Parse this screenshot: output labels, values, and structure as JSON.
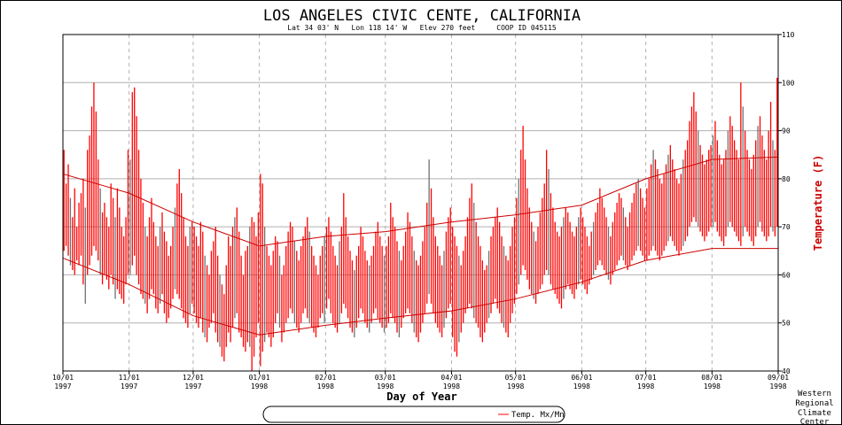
{
  "chart_data": {
    "type": "bar",
    "title": "LOS ANGELES CIVIC CENTE, CALIFORNIA",
    "subtitle": "Lat 34 03' N   Lon 118 14' W   Elev 270 feet     COOP ID 045115",
    "xlabel": "Day of Year",
    "ylabel": "Temperature (F)",
    "ylim": [
      40,
      110
    ],
    "y_ticks": [
      40,
      50,
      60,
      70,
      80,
      90,
      100,
      110
    ],
    "x_start": "1997-10-01",
    "x_ticks": [
      {
        "label": "10/01",
        "year": "1997",
        "day": 0
      },
      {
        "label": "11/01",
        "year": "1997",
        "day": 31
      },
      {
        "label": "12/01",
        "year": "1997",
        "day": 61
      },
      {
        "label": "01/01",
        "year": "1998",
        "day": 92
      },
      {
        "label": "02/01",
        "year": "1998",
        "day": 123
      },
      {
        "label": "03/01",
        "year": "1998",
        "day": 151
      },
      {
        "label": "04/01",
        "year": "1998",
        "day": 182
      },
      {
        "label": "05/01",
        "year": "1998",
        "day": 212
      },
      {
        "label": "06/01",
        "year": "1998",
        "day": 243
      },
      {
        "label": "07/01",
        "year": "1998",
        "day": 273
      },
      {
        "label": "08/01",
        "year": "1998",
        "day": 304
      },
      {
        "label": "09/01",
        "year": "1998",
        "day": 335
      }
    ],
    "grid": true,
    "legend": {
      "label": "Temp. Mx/Mn",
      "placement": "bottom"
    },
    "credit": [
      "Western",
      "Regional",
      "Climate",
      "Center"
    ],
    "colors": {
      "bars": "#ff0000",
      "normals": "#cc0000",
      "ylabel": "#cc0000",
      "grid": "#b0b0b0"
    },
    "daily_max": [
      86,
      79,
      83,
      76,
      72,
      78,
      70,
      75,
      77,
      80,
      74,
      86,
      89,
      95,
      100,
      94,
      84,
      78,
      73,
      75,
      72,
      70,
      79,
      76,
      72,
      78,
      74,
      70,
      68,
      72,
      86,
      84,
      98,
      99,
      93,
      86,
      80,
      75,
      70,
      68,
      72,
      76,
      71,
      68,
      66,
      70,
      73,
      69,
      67,
      64,
      66,
      70,
      74,
      79,
      82,
      77,
      72,
      68,
      66,
      70,
      71,
      70,
      68,
      66,
      71,
      69,
      64,
      62,
      60,
      65,
      67,
      70,
      64,
      60,
      58,
      56,
      62,
      68,
      66,
      70,
      72,
      74,
      69,
      64,
      60,
      65,
      66,
      70,
      72,
      71,
      68,
      73,
      81,
      79,
      70,
      66,
      64,
      62,
      65,
      68,
      67,
      64,
      60,
      62,
      66,
      69,
      71,
      70,
      67,
      65,
      63,
      66,
      68,
      70,
      72,
      69,
      66,
      64,
      62,
      60,
      64,
      66,
      68,
      70,
      72,
      69,
      66,
      64,
      62,
      67,
      70,
      77,
      72,
      68,
      65,
      63,
      61,
      64,
      66,
      70,
      68,
      65,
      63,
      62,
      64,
      66,
      69,
      71,
      68,
      66,
      64,
      66,
      68,
      75,
      72,
      70,
      67,
      65,
      63,
      66,
      69,
      73,
      71,
      68,
      65,
      63,
      62,
      64,
      67,
      70,
      75,
      84,
      78,
      72,
      68,
      66,
      64,
      62,
      65,
      69,
      72,
      74,
      70,
      68,
      66,
      64,
      62,
      65,
      68,
      72,
      76,
      79,
      75,
      71,
      68,
      66,
      63,
      61,
      62,
      65,
      68,
      70,
      72,
      74,
      71,
      68,
      66,
      64,
      63,
      66,
      70,
      72,
      76,
      80,
      86,
      91,
      84,
      78,
      74,
      71,
      69,
      67,
      70,
      73,
      76,
      79,
      86,
      82,
      77,
      74,
      71,
      69,
      68,
      70,
      72,
      74,
      73,
      71,
      69,
      68,
      70,
      72,
      74,
      72,
      70,
      68,
      66,
      69,
      71,
      73,
      75,
      78,
      76,
      74,
      72,
      70,
      68,
      71,
      73,
      75,
      77,
      76,
      74,
      72,
      70,
      73,
      75,
      77,
      79,
      80,
      78,
      76,
      74,
      78,
      80,
      83,
      86,
      84,
      82,
      80,
      79,
      81,
      83,
      85,
      87,
      84,
      82,
      80,
      79,
      81,
      84,
      86,
      88,
      92,
      95,
      98,
      94,
      90,
      87,
      85,
      83,
      84,
      86,
      87,
      89,
      92,
      88,
      85,
      83,
      84,
      86,
      90,
      93,
      91,
      88,
      86,
      84,
      100,
      95,
      90,
      86,
      84,
      82,
      85,
      88,
      91,
      93,
      89,
      86,
      84,
      90,
      96,
      88,
      86,
      101
    ],
    "daily_min": [
      65,
      66,
      64,
      62,
      61,
      60,
      63,
      62,
      64,
      58,
      54,
      60,
      62,
      64,
      66,
      65,
      63,
      60,
      58,
      60,
      59,
      57,
      60,
      58,
      55,
      57,
      56,
      55,
      54,
      58,
      60,
      60,
      62,
      64,
      60,
      58,
      56,
      55,
      54,
      52,
      55,
      57,
      56,
      53,
      52,
      54,
      56,
      52,
      50,
      51,
      53,
      55,
      57,
      56,
      55,
      53,
      51,
      50,
      49,
      52,
      54,
      52,
      50,
      49,
      51,
      48,
      47,
      46,
      49,
      50,
      52,
      48,
      46,
      45,
      43,
      42,
      45,
      48,
      46,
      49,
      51,
      52,
      48,
      47,
      45,
      44,
      46,
      45,
      40,
      43,
      47,
      50,
      41,
      44,
      46,
      48,
      47,
      45,
      47,
      50,
      52,
      49,
      46,
      48,
      50,
      51,
      53,
      52,
      50,
      49,
      48,
      50,
      52,
      53,
      51,
      50,
      49,
      48,
      47,
      49,
      51,
      52,
      50,
      53,
      55,
      52,
      50,
      49,
      48,
      50,
      52,
      54,
      53,
      51,
      49,
      48,
      47,
      49,
      51,
      53,
      52,
      50,
      49,
      48,
      50,
      52,
      53,
      51,
      50,
      49,
      48,
      49,
      50,
      52,
      51,
      50,
      48,
      47,
      49,
      51,
      52,
      53,
      52,
      50,
      48,
      47,
      46,
      48,
      50,
      52,
      54,
      56,
      54,
      52,
      50,
      49,
      48,
      47,
      49,
      51,
      53,
      54,
      47,
      44,
      43,
      46,
      48,
      50,
      52,
      53,
      54,
      53,
      51,
      50,
      49,
      47,
      46,
      48,
      50,
      51,
      52,
      54,
      55,
      53,
      52,
      50,
      49,
      48,
      47,
      50,
      52,
      54,
      56,
      58,
      60,
      62,
      61,
      59,
      57,
      56,
      55,
      54,
      56,
      57,
      58,
      60,
      61,
      60,
      58,
      57,
      56,
      55,
      54,
      53,
      55,
      57,
      58,
      57,
      56,
      55,
      57,
      58,
      59,
      58,
      57,
      56,
      58,
      59,
      60,
      61,
      62,
      63,
      62,
      61,
      60,
      59,
      58,
      60,
      61,
      62,
      63,
      64,
      63,
      62,
      61,
      62,
      63,
      64,
      65,
      66,
      65,
      64,
      63,
      63,
      64,
      65,
      66,
      65,
      64,
      63,
      64,
      65,
      66,
      67,
      68,
      67,
      66,
      65,
      64,
      65,
      66,
      67,
      68,
      70,
      71,
      72,
      71,
      70,
      69,
      68,
      67,
      68,
      69,
      70,
      70,
      71,
      69,
      68,
      67,
      66,
      68,
      70,
      71,
      70,
      69,
      68,
      67,
      66,
      68,
      70,
      69,
      68,
      67,
      66,
      68,
      70,
      71,
      69,
      68,
      67,
      68,
      70,
      69,
      68,
      70
    ],
    "normal_max": [
      81,
      77,
      71,
      66,
      68,
      69,
      71,
      72.5,
      74.5,
      80,
      84,
      84.5
    ],
    "normal_min": [
      63.5,
      58,
      51.5,
      47.5,
      49.5,
      51,
      52.5,
      55,
      58.5,
      63,
      65.5,
      65.5
    ]
  }
}
